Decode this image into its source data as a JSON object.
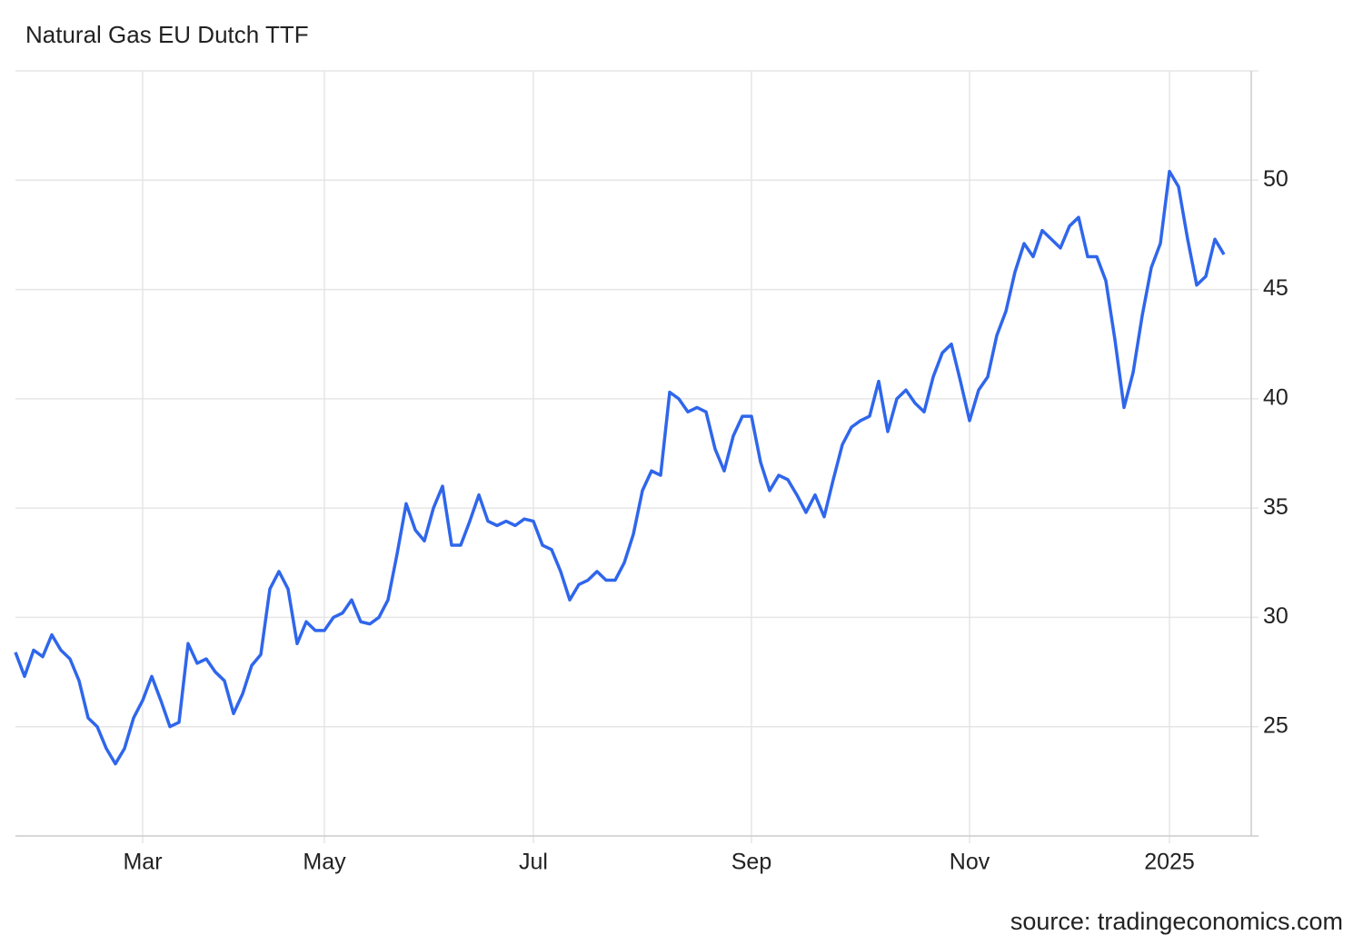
{
  "chart_data": {
    "type": "line",
    "title": "Natural Gas EU Dutch TTF",
    "source": "source: tradingeconomics.com",
    "categories": [
      null,
      null,
      null,
      null,
      null,
      null,
      null,
      null,
      null,
      null,
      null,
      null,
      null,
      null,
      "Mar",
      null,
      null,
      null,
      null,
      null,
      null,
      null,
      null,
      null,
      null,
      null,
      null,
      null,
      null,
      null,
      null,
      null,
      null,
      null,
      "May",
      null,
      null,
      null,
      null,
      null,
      null,
      null,
      null,
      null,
      null,
      null,
      null,
      null,
      null,
      null,
      null,
      null,
      null,
      null,
      null,
      null,
      null,
      "Jul",
      null,
      null,
      null,
      null,
      null,
      null,
      null,
      null,
      null,
      null,
      null,
      null,
      null,
      null,
      null,
      null,
      null,
      null,
      null,
      null,
      null,
      null,
      null,
      "Sep",
      null,
      null,
      null,
      null,
      null,
      null,
      null,
      null,
      null,
      null,
      null,
      null,
      null,
      null,
      null,
      null,
      null,
      null,
      null,
      null,
      null,
      null,
      null,
      "Nov",
      null,
      null,
      null,
      null,
      null,
      null,
      null,
      null,
      null,
      null,
      null,
      null,
      null,
      null,
      null,
      null,
      null,
      null,
      null,
      null,
      null,
      "2025",
      null,
      null,
      null,
      null,
      null,
      null
    ],
    "series": [
      {
        "name": "Natural Gas EU Dutch TTF",
        "color": "#2f66eb",
        "values": [
          28.4,
          27.3,
          28.5,
          28.2,
          29.2,
          28.5,
          28.1,
          27.1,
          25.4,
          25.0,
          24.0,
          23.3,
          24.0,
          25.4,
          26.2,
          27.3,
          26.2,
          25.0,
          25.2,
          28.8,
          27.9,
          28.1,
          27.5,
          27.1,
          25.6,
          26.5,
          27.8,
          28.3,
          31.3,
          32.1,
          31.3,
          28.8,
          29.8,
          29.4,
          29.4,
          30.0,
          30.2,
          30.8,
          29.8,
          29.7,
          30.0,
          30.8,
          32.9,
          35.2,
          34.0,
          33.5,
          35.0,
          36.0,
          33.3,
          33.3,
          34.4,
          35.6,
          34.4,
          34.2,
          34.4,
          34.2,
          34.5,
          34.4,
          33.3,
          33.1,
          32.1,
          30.8,
          31.5,
          31.7,
          32.1,
          31.7,
          31.7,
          32.5,
          33.8,
          35.8,
          36.7,
          36.5,
          40.3,
          40.0,
          39.4,
          39.6,
          39.4,
          37.7,
          36.7,
          38.3,
          39.2,
          39.2,
          37.1,
          35.8,
          36.5,
          36.3,
          35.6,
          34.8,
          35.6,
          34.6,
          36.3,
          37.9,
          38.7,
          39.0,
          39.2,
          40.8,
          38.5,
          40.0,
          40.4,
          39.8,
          39.4,
          41.0,
          42.1,
          42.5,
          40.8,
          39.0,
          40.4,
          41.0,
          42.9,
          44.0,
          45.8,
          47.1,
          46.5,
          47.7,
          47.3,
          46.9,
          47.9,
          48.3,
          46.5,
          46.5,
          45.4,
          42.7,
          39.6,
          41.2,
          43.8,
          46.0,
          47.1,
          50.4,
          49.7,
          47.3,
          45.2,
          45.6,
          47.3,
          46.6
        ]
      }
    ],
    "ylim": [
      20,
      55
    ],
    "yticks": [
      25,
      30,
      35,
      40,
      45,
      50
    ],
    "grid": true
  }
}
